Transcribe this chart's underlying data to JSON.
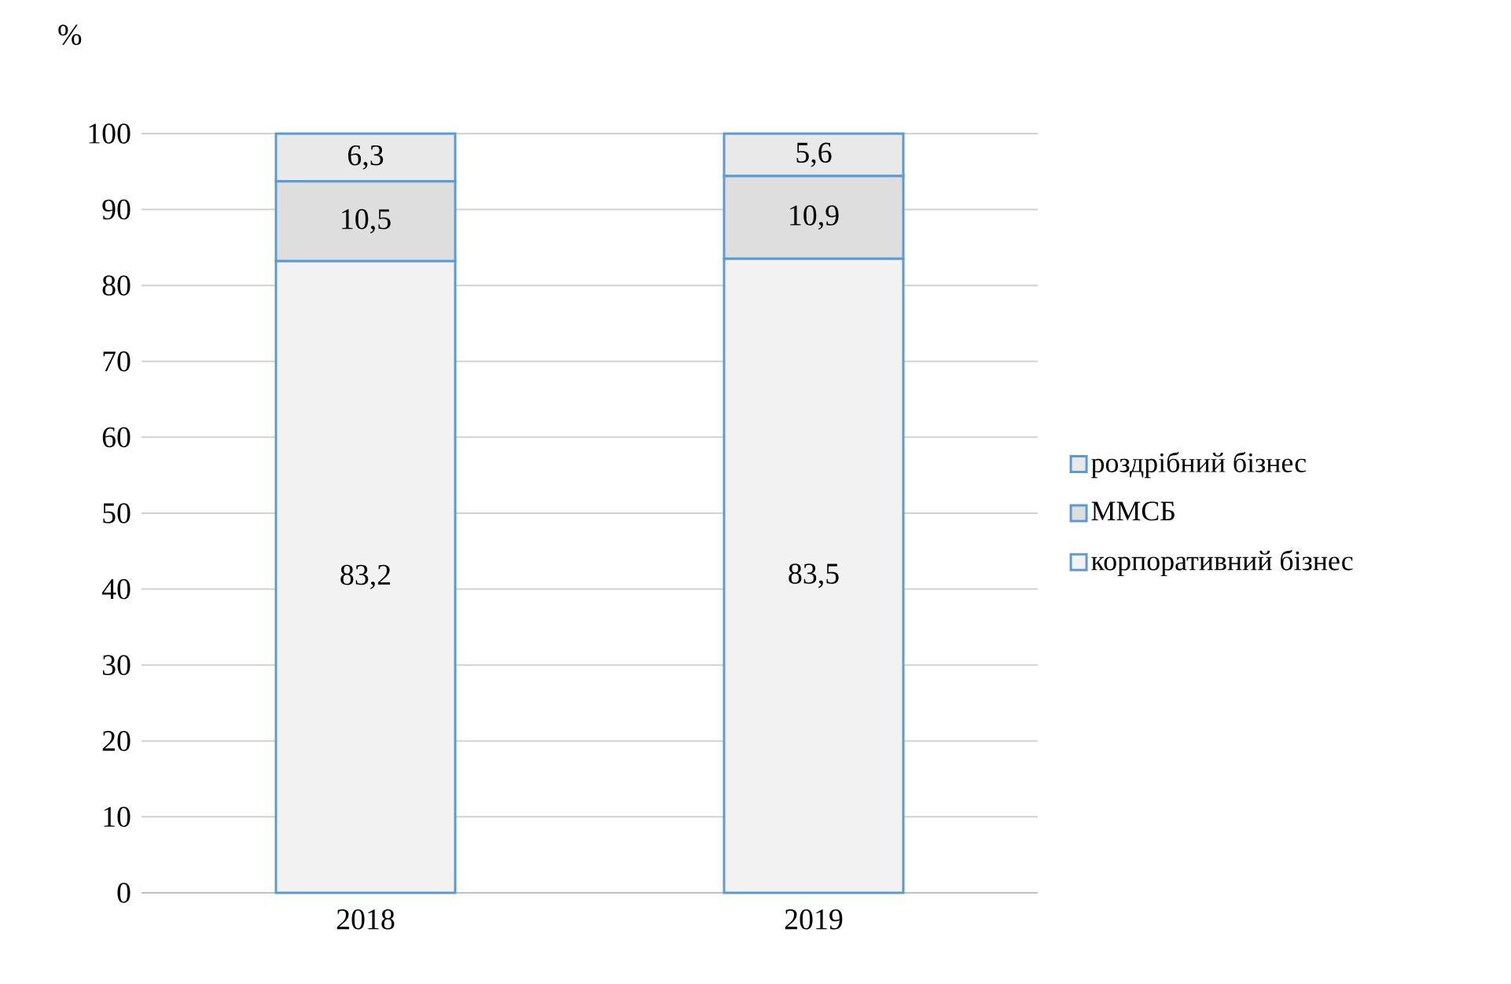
{
  "chart_data": {
    "type": "bar",
    "stacked": true,
    "ylabel": "%",
    "categories": [
      "2018",
      "2019"
    ],
    "series": [
      {
        "name": "корпоративний бізнес",
        "color": "#f2f2f2",
        "values": [
          83.2,
          83.5
        ],
        "value_labels": [
          "83,2",
          "83,5"
        ]
      },
      {
        "name": "ММСБ",
        "color": "#dedede",
        "values": [
          10.5,
          10.9
        ],
        "value_labels": [
          "10,5",
          "10,9"
        ]
      },
      {
        "name": "роздрібний бізнес",
        "color": "#e9e9e9",
        "values": [
          6.3,
          5.6
        ],
        "value_labels": [
          "6,3",
          "5,6"
        ]
      }
    ],
    "ylim": [
      0,
      100
    ],
    "yticks": [
      0,
      10,
      20,
      30,
      40,
      50,
      60,
      70,
      80,
      90,
      100
    ],
    "grid": "y",
    "legend": "right"
  }
}
